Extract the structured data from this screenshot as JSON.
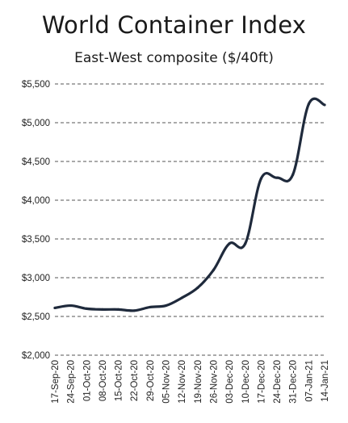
{
  "chart_data": {
    "type": "line",
    "title": "World Container Index",
    "subtitle": "East-West composite ($/40ft)",
    "xlabel": "",
    "ylabel": "",
    "categories": [
      "17-Sep-20",
      "24-Sep-20",
      "01-Oct-20",
      "08-Oct-20",
      "15-Oct-20",
      "22-Oct-20",
      "29-Oct-20",
      "05-Nov-20",
      "12-Nov-20",
      "19-Nov-20",
      "26-Nov-20",
      "03-Dec-20",
      "10-Dec-20",
      "17-Dec-20",
      "24-Dec-20",
      "31-Dec-20",
      "07-Jan-21",
      "14-Jan-21"
    ],
    "series": [
      {
        "name": "",
        "values": [
          2610,
          2640,
          2600,
          2590,
          2590,
          2575,
          2620,
          2640,
          2740,
          2870,
          3100,
          3440,
          3440,
          4280,
          4290,
          4330,
          5240,
          5230
        ]
      }
    ],
    "ylim": [
      2000,
      5500
    ],
    "yticks": [
      2000,
      2500,
      3000,
      3500,
      4000,
      4500,
      5000,
      5500
    ],
    "ytick_labels": [
      "$2,000",
      "$2,500",
      "$3,000",
      "$3,500",
      "$4,000",
      "$4,500",
      "$5,000",
      "$5,500"
    ],
    "grid": "horizontal-dashed",
    "legend": "none",
    "line_color": "#1f2a3c",
    "grid_color": "#555555"
  }
}
